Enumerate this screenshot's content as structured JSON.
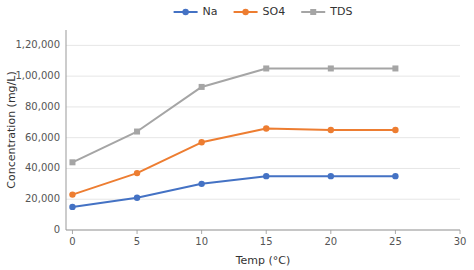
{
  "chart_data": {
    "type": "line",
    "x": [
      0,
      5,
      10,
      15,
      20,
      25
    ],
    "series": [
      {
        "name": "Na",
        "color": "#4472c4",
        "marker": "circle",
        "values": [
          15000,
          21000,
          30000,
          35000,
          35000,
          35000
        ]
      },
      {
        "name": "SO4",
        "color": "#ed7d31",
        "marker": "circle",
        "values": [
          23000,
          37000,
          57000,
          66000,
          65000,
          65000
        ]
      },
      {
        "name": "TDS",
        "color": "#a5a5a5",
        "marker": "square",
        "values": [
          44000,
          64000,
          93000,
          105000,
          105000,
          105000
        ]
      }
    ],
    "xlabel": "Temp (°C)",
    "ylabel": "Concentration (mg/L)",
    "xlim": [
      -0.5,
      30
    ],
    "ylim": [
      0,
      130000
    ],
    "xticks": [
      0,
      5,
      10,
      15,
      20,
      25,
      30
    ],
    "yticks": [
      0,
      {
        "value": 20000,
        "label": "20,000"
      },
      {
        "value": 40000,
        "label": "40,000"
      },
      {
        "value": 60000,
        "label": "60,000"
      },
      {
        "value": 80000,
        "label": "80,000"
      },
      {
        "value": 100000,
        "label": "1,00,000"
      },
      {
        "value": 120000,
        "label": "1,20,000"
      }
    ],
    "grid": true,
    "legend": "top"
  }
}
